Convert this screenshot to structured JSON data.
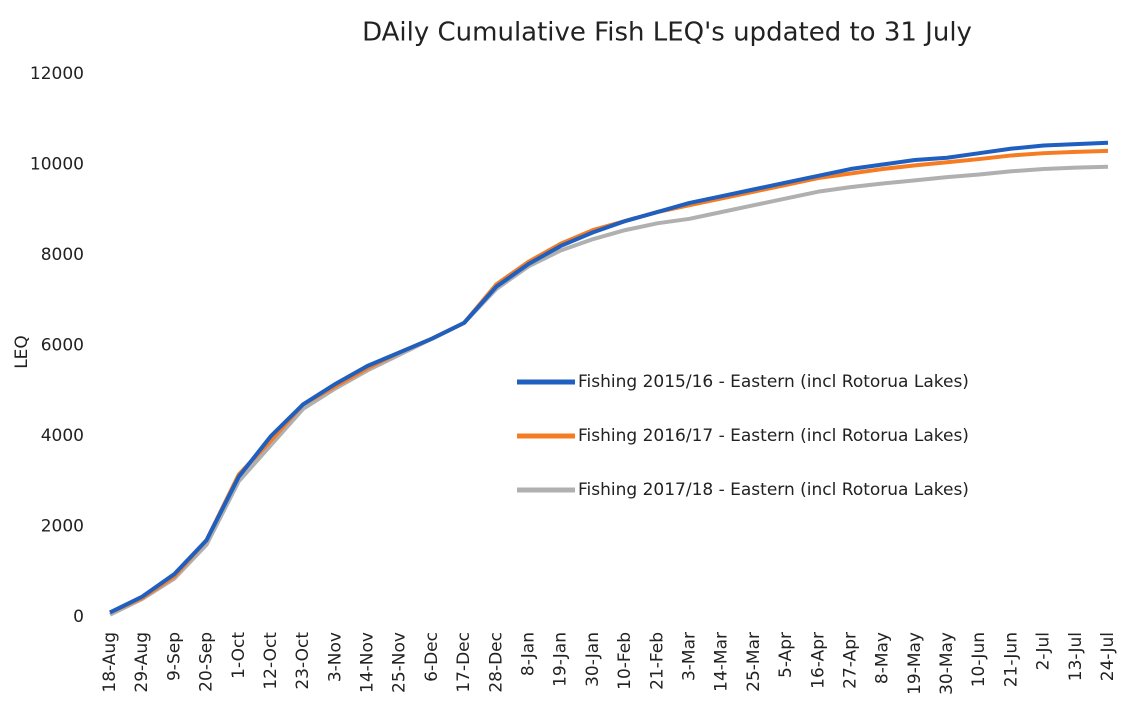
{
  "chart_data": {
    "type": "line",
    "title": "DAily Cumulative Fish LEQ's updated to 31 July",
    "y_label": "LEQ",
    "categories": [
      "18-Aug",
      "29-Aug",
      "9-Sep",
      "20-Sep",
      "1-Oct",
      "12-Oct",
      "23-Oct",
      "3-Nov",
      "14-Nov",
      "25-Nov",
      "6-Dec",
      "17-Dec",
      "28-Dec",
      "8-Jan",
      "19-Jan",
      "30-Jan",
      "10-Feb",
      "21-Feb",
      "3-Mar",
      "14-Mar",
      "25-Mar",
      "5-Apr",
      "16-Apr",
      "27-Apr",
      "8-May",
      "19-May",
      "30-May",
      "10-Jun",
      "21-Jun",
      "2-Jul",
      "13-Jul",
      "24-Jul"
    ],
    "series": [
      {
        "name": "Fishing 2015/16 - Eastern (incl Rotorua Lakes)",
        "color": "#1f5fbf",
        "values": [
          100,
          450,
          950,
          1700,
          3100,
          4000,
          4700,
          5150,
          5550,
          5850,
          6150,
          6500,
          7300,
          7800,
          8200,
          8500,
          8750,
          8950,
          9150,
          9300,
          9450,
          9600,
          9750,
          9900,
          10000,
          10100,
          10150,
          10250,
          10350,
          10420,
          10450,
          10480
        ]
      },
      {
        "name": "Fishing 2016/17 - Eastern (incl Rotorua Lakes)",
        "color": "#f57c22",
        "values": [
          100,
          420,
          900,
          1700,
          3150,
          3900,
          4700,
          5100,
          5500,
          5850,
          6150,
          6500,
          7350,
          7850,
          8250,
          8550,
          8750,
          8950,
          9100,
          9250,
          9400,
          9550,
          9700,
          9800,
          9900,
          9980,
          10050,
          10120,
          10200,
          10250,
          10280,
          10300
        ]
      },
      {
        "name": "Fishing 2017/18 - Eastern (incl Rotorua Lakes)",
        "color": "#b0b0b0",
        "values": [
          50,
          400,
          850,
          1600,
          3000,
          3800,
          4600,
          5050,
          5450,
          5800,
          6150,
          6500,
          7250,
          7750,
          8100,
          8350,
          8550,
          8700,
          8800,
          8950,
          9100,
          9250,
          9400,
          9500,
          9580,
          9650,
          9720,
          9780,
          9850,
          9900,
          9930,
          9950
        ]
      }
    ],
    "ylim": [
      0,
      12000
    ],
    "yticks": [
      0,
      2000,
      4000,
      6000,
      8000,
      10000,
      12000
    ],
    "grid": false
  }
}
